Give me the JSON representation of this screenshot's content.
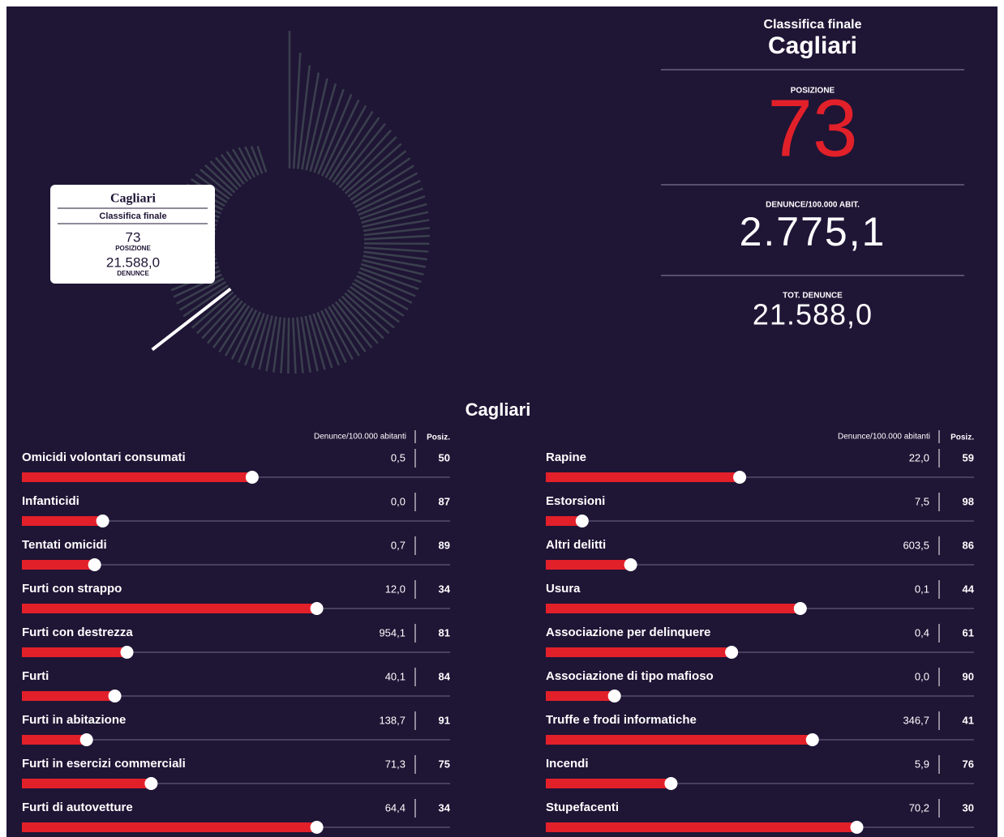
{
  "radial": {
    "type": "radial-bar",
    "values": [
      7000,
      5900,
      5300,
      5000,
      4800,
      4650,
      4500,
      4400,
      4300,
      4200,
      4120,
      4050,
      3980,
      3920,
      3860,
      3800,
      3750,
      3700,
      3650,
      3610,
      3570,
      3530,
      3490,
      3460,
      3430,
      3400,
      3370,
      3340,
      3310,
      3280,
      3250,
      3230,
      3210,
      3190,
      3170,
      3150,
      3130,
      3110,
      3090,
      3070,
      3050,
      3030,
      3010,
      2990,
      2970,
      2950,
      2940,
      2930,
      2920,
      2910,
      2900,
      2890,
      2880,
      2870,
      2860,
      2850,
      2845,
      2840,
      2835,
      2830,
      2825,
      2820,
      2815,
      2810,
      2805,
      2800,
      2795,
      2790,
      2785,
      2782,
      2780,
      2778,
      2775.1,
      2760,
      2740,
      2720,
      2700,
      2680,
      2650,
      2620,
      2590,
      2560,
      2530,
      2500,
      2470,
      2440,
      2410,
      2380,
      2350,
      2320,
      2290,
      2260,
      2230,
      2200,
      2170,
      2130,
      2090,
      2050,
      2000,
      1950,
      1900,
      1850,
      1780,
      1700,
      1600,
      1500,
      1400
    ],
    "highlight": 72,
    "color": "#3a3f4e",
    "highlight_color": "#ffffff"
  },
  "tooltip": {
    "city": "Cagliari",
    "subtitle": "Classifica finale",
    "position": "73",
    "position_label": "POSIZIONE",
    "total": "21.588,0",
    "total_label": "DENUNCE"
  },
  "summary": {
    "heading": "Classifica finale",
    "city": "Cagliari",
    "position_label": "POSIZIONE",
    "position": "73",
    "rate_label": "DENUNCE/100.000 ABIT.",
    "rate": "2.775,1",
    "total_label": "TOT. DENUNCE",
    "total": "21.588,0"
  },
  "breakdown": {
    "title": "Cagliari",
    "value_header": "Denunce/100.000 abitanti",
    "rank_header": "Posiz.",
    "rank_lim": [
      107,
      1
    ],
    "bar_color": "#e2202a",
    "columns": [
      [
        {
          "name": "Omicidi volontari consumati",
          "value": "0,5",
          "rank": 50
        },
        {
          "name": "Infanticidi",
          "value": "0,0",
          "rank": 87
        },
        {
          "name": "Tentati omicidi",
          "value": "0,7",
          "rank": 89
        },
        {
          "name": "Furti con strappo",
          "value": "12,0",
          "rank": 34
        },
        {
          "name": "Furti con destrezza",
          "value": "954,1",
          "rank": 81
        },
        {
          "name": "Furti",
          "value": "40,1",
          "rank": 84
        },
        {
          "name": "Furti in abitazione",
          "value": "138,7",
          "rank": 91
        },
        {
          "name": "Furti in esercizi commerciali",
          "value": "71,3",
          "rank": 75
        },
        {
          "name": "Furti di autovetture",
          "value": "64,4",
          "rank": 34
        }
      ],
      [
        {
          "name": "Rapine",
          "value": "22,0",
          "rank": 59
        },
        {
          "name": "Estorsioni",
          "value": "7,5",
          "rank": 98
        },
        {
          "name": "Altri delitti",
          "value": "603,5",
          "rank": 86
        },
        {
          "name": "Usura",
          "value": "0,1",
          "rank": 44
        },
        {
          "name": "Associazione per delinquere",
          "value": "0,4",
          "rank": 61
        },
        {
          "name": "Associazione di tipo mafioso",
          "value": "0,0",
          "rank": 90
        },
        {
          "name": "Truffe e frodi informatiche",
          "value": "346,7",
          "rank": 41
        },
        {
          "name": "Incendi",
          "value": "5,9",
          "rank": 76
        },
        {
          "name": "Stupefacenti",
          "value": "70,2",
          "rank": 30
        }
      ]
    ]
  }
}
